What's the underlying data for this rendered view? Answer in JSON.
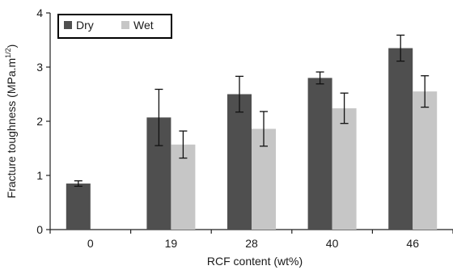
{
  "chart_data": {
    "type": "bar",
    "title": "",
    "xlabel": "RCF content (wt%)",
    "ylabel_main": "Fracture toughness (MPa.m",
    "ylabel_sup": "1/2",
    "ylabel_close": ")",
    "ylim": [
      0,
      4
    ],
    "yticks": [
      "0",
      "1",
      "2",
      "3",
      "4"
    ],
    "categories": [
      "0",
      "19",
      "28",
      "40",
      "46"
    ],
    "grid": false,
    "legend_position": "top-left",
    "series": [
      {
        "name": "Dry",
        "color": "#4f4f4f",
        "values": [
          0.85,
          2.07,
          2.5,
          2.8,
          3.35
        ],
        "error": [
          0.05,
          0.52,
          0.33,
          0.11,
          0.24
        ]
      },
      {
        "name": "Wet",
        "color": "#c6c6c6",
        "values": [
          null,
          1.57,
          1.86,
          2.24,
          2.55
        ],
        "error": [
          null,
          0.25,
          0.32,
          0.28,
          0.29
        ]
      }
    ]
  }
}
